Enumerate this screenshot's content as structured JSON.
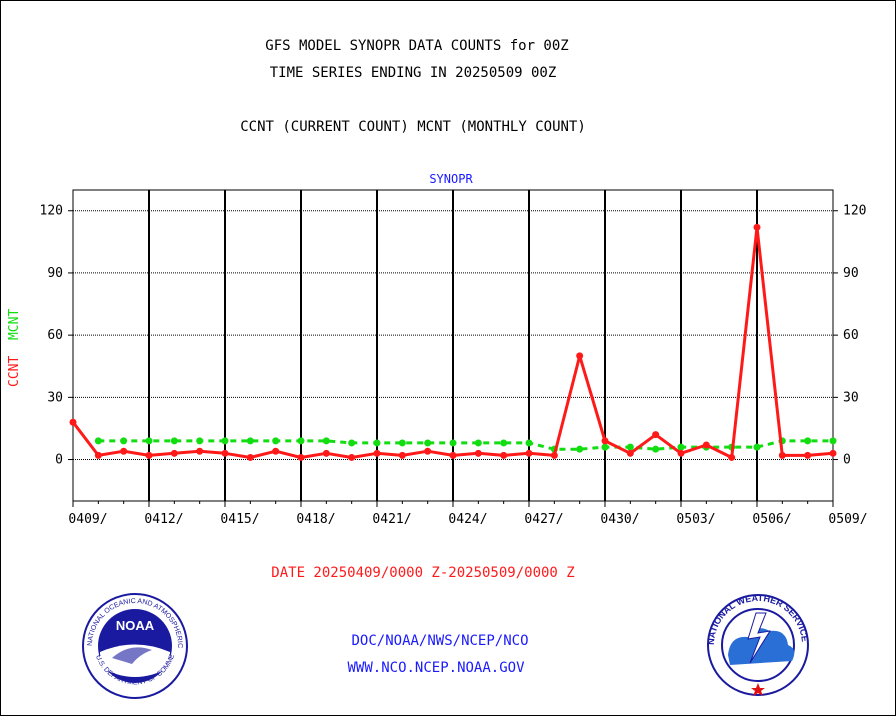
{
  "titles": {
    "line1": "GFS MODEL SYNOPR DATA COUNTS for 00Z",
    "line2": "TIME SERIES ENDING IN 20250509 00Z",
    "line3": "CCNT (CURRENT COUNT) MCNT (MONTHLY COUNT)",
    "panel": "SYNOPR"
  },
  "date_range": "DATE 20250409/0000 Z-20250509/0000 Z",
  "footer": {
    "org": "DOC/NOAA/NWS/NCEP/NCO",
    "url": "WWW.NCO.NCEP.NOAA.GOV"
  },
  "colors": {
    "ccnt": "#ff1a1a",
    "mcnt": "#11dd11",
    "title_blue": "#1a1aff"
  },
  "chart_data": {
    "type": "line",
    "title": "SYNOPR",
    "ylabel_ccnt": "CCNT",
    "ylabel_mcnt": "MCNT",
    "ylim": [
      -20,
      130
    ],
    "yticks": [
      0,
      30,
      60,
      90,
      120
    ],
    "xtick_labels": [
      "0409/",
      "0412/",
      "0415/",
      "0418/",
      "0421/",
      "0424/",
      "0427/",
      "0430/",
      "0503/",
      "0506/",
      "0509/"
    ],
    "grid": true,
    "x": [
      "0409",
      "0410",
      "0411",
      "0412",
      "0413",
      "0414",
      "0415",
      "0416",
      "0417",
      "0418",
      "0419",
      "0420",
      "0421",
      "0422",
      "0423",
      "0424",
      "0425",
      "0426",
      "0427",
      "0428",
      "0429",
      "0430",
      "0501",
      "0502",
      "0503",
      "0504",
      "0505",
      "0506",
      "0507",
      "0508",
      "0509"
    ],
    "series": [
      {
        "name": "CCNT",
        "values": [
          18,
          2,
          4,
          2,
          3,
          4,
          3,
          1,
          4,
          1,
          3,
          1,
          3,
          2,
          4,
          2,
          3,
          2,
          3,
          2,
          50,
          9,
          3,
          12,
          3,
          7,
          1,
          112,
          2,
          2,
          3
        ]
      },
      {
        "name": "MCNT",
        "values": [
          null,
          9,
          9,
          9,
          9,
          9,
          9,
          9,
          9,
          9,
          9,
          8,
          8,
          8,
          8,
          8,
          8,
          8,
          8,
          5,
          5,
          6,
          6,
          5,
          6,
          6,
          6,
          6,
          9,
          9,
          9
        ]
      }
    ]
  }
}
